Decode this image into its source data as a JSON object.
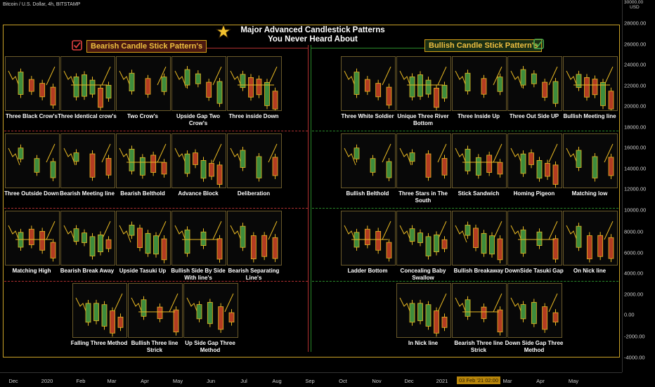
{
  "header": {
    "symbol_text": "Bitcoin / U.S. Dollar, 4h, BITSTAMP"
  },
  "title": {
    "line1": "Major Advanced Candlestick Patterns",
    "line2": "You Never Heard About"
  },
  "sections": {
    "bearish": "Bearish Candle Stick Pattern's",
    "bullish": "Bullish Candle Stick Pattern's"
  },
  "yaxis": {
    "top_label": "30000.00",
    "currency": "USD",
    "ticks": [
      "28000.00",
      "26000.00",
      "24000.00",
      "22000.00",
      "20000.00",
      "18000.00",
      "16000.00",
      "14000.00",
      "12000.00",
      "10000.00",
      "8000.00",
      "6000.00",
      "4000.00",
      "2000.00",
      "0.00",
      "-2000.00",
      "-4000.00"
    ]
  },
  "xaxis": {
    "ticks": [
      "Dec",
      "2020",
      "Feb",
      "Mar",
      "Apr",
      "May",
      "Jun",
      "Jul",
      "Aug",
      "Sep",
      "Oct",
      "Nov",
      "Dec",
      "2021",
      "Mar",
      "Apr",
      "May"
    ],
    "badge": "03 Feb '21   02:00"
  },
  "bearish": [
    {
      "label": "Three Black Crow's"
    },
    {
      "label": "Three Identical crow's"
    },
    {
      "label": "Two Crow's"
    },
    {
      "label": "Upside Gap Two Crow's"
    },
    {
      "label": "Three inside Down"
    },
    {
      "label": "Three Outside Down"
    },
    {
      "label": "Bearish Meeting line"
    },
    {
      "label": "Bearish Belthold"
    },
    {
      "label": "Advance Block"
    },
    {
      "label": "Deliberation"
    },
    {
      "label": "Matching High"
    },
    {
      "label": "Bearish Break Away"
    },
    {
      "label": "Upside Tasuki Up"
    },
    {
      "label": "Bullish Side By Side With line's"
    },
    {
      "label": "Bearish Separating Line's"
    },
    {
      "label": "Falling Three Method"
    },
    {
      "label": "Bullish Three line Strick"
    },
    {
      "label": "Up Side Gap Three Method"
    }
  ],
  "bullish": [
    {
      "label": "Three White Soldier"
    },
    {
      "label": "Unique Three  River Bottom"
    },
    {
      "label": "Three Inside Up"
    },
    {
      "label": "Three Out Side UP"
    },
    {
      "label": "Bullish Meeting line"
    },
    {
      "label": "Bullish Belthold"
    },
    {
      "label": "Three Stars in The South"
    },
    {
      "label": "Stick Sandwich"
    },
    {
      "label": "Homing Pigeon"
    },
    {
      "label": "Matching low"
    },
    {
      "label": "Ladder Bottom"
    },
    {
      "label": "Concealing Baby Swallow"
    },
    {
      "label": "Bullish Breakaway"
    },
    {
      "label": "DownSide Tasuki Gap"
    },
    {
      "label": "On Nick line"
    },
    {
      "label": "In Nick line"
    },
    {
      "label": "Bearish Three line Strick"
    },
    {
      "label": "Down Side Gap Three Method"
    }
  ],
  "colors": {
    "bull_candle": "#3d8c3d",
    "bear_candle": "#b33c22",
    "frame": "#c9a227",
    "grid_red": "#b03030",
    "grid_green": "#2a8a2a",
    "label_bear_bg": "#4a140e",
    "label_bull_bg": "#173b1c"
  }
}
